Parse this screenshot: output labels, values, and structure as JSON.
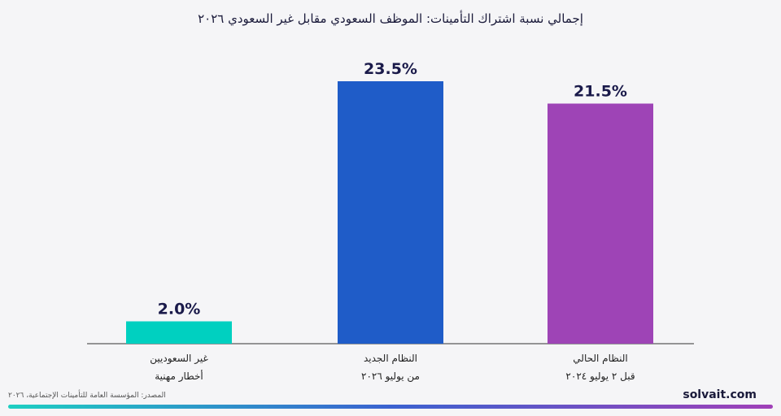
{
  "chart_data": {
    "type": "bar",
    "title": "إجمالي نسبة اشتراك التأمينات: الموظف السعودي مقابل غير السعودي ٢٠٢٦",
    "categories": [
      {
        "line1": "غير السعوديين",
        "line2": "أخطار مهنية"
      },
      {
        "line1": "النظام الجديد",
        "line2": "من يوليو ٢٠٢٦"
      },
      {
        "line1": "النظام الحالي",
        "line2": "قبل ٢ يوليو ٢٠٢٤"
      }
    ],
    "values": [
      2.0,
      23.5,
      21.5
    ],
    "value_labels": [
      "2.0%",
      "23.5%",
      "21.5%"
    ],
    "colors": [
      "#00d0c0",
      "#1f5cc8",
      "#9e44b6"
    ],
    "ylim": [
      0,
      23.5
    ],
    "grid": false,
    "legend": "none"
  },
  "footer": {
    "source": "المصدر: المؤسسة العامة للتأمينات الإجتماعية، ٢٠٢٦",
    "brand": "solvait.com"
  }
}
